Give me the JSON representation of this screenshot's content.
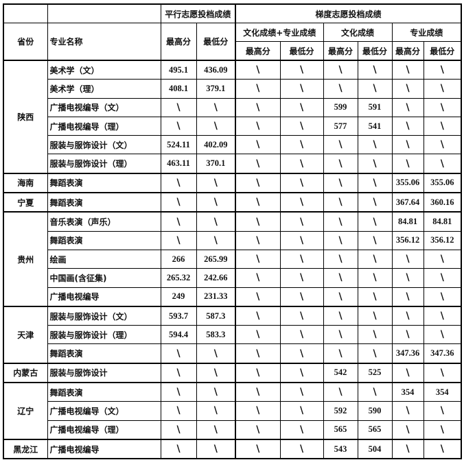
{
  "header": {
    "parallel": "平行志愿投档成绩",
    "gradient": "梯度志愿投档成绩",
    "province": "省份",
    "major": "专业名称",
    "culture_plus_major": "文化成绩+专业成绩",
    "culture": "文化成绩",
    "major_score": "专业成绩",
    "max": "最高分",
    "min": "最低分"
  },
  "groups": [
    {
      "province": "陕西",
      "rows": [
        {
          "major": "美术学（文）",
          "values": [
            "495.1",
            "436.09",
            "\\",
            "\\",
            "\\",
            "\\",
            "\\",
            "\\"
          ]
        },
        {
          "major": "美术学（理）",
          "values": [
            "408.1",
            "379.1",
            "\\",
            "\\",
            "\\",
            "\\",
            "\\",
            "\\"
          ]
        },
        {
          "major": "广播电视编导（文）",
          "values": [
            "\\",
            "\\",
            "\\",
            "\\",
            "599",
            "591",
            "\\",
            "\\"
          ]
        },
        {
          "major": "广播电视编导（理）",
          "values": [
            "\\",
            "\\",
            "\\",
            "\\",
            "577",
            "541",
            "\\",
            "\\"
          ]
        },
        {
          "major": "服装与服饰设计（文）",
          "values": [
            "524.11",
            "402.09",
            "\\",
            "\\",
            "\\",
            "\\",
            "\\",
            "\\"
          ]
        },
        {
          "major": "服装与服饰设计（理）",
          "values": [
            "463.11",
            "370.1",
            "\\",
            "\\",
            "\\",
            "\\",
            "\\",
            "\\"
          ]
        }
      ]
    },
    {
      "province": "海南",
      "rows": [
        {
          "major": "舞蹈表演",
          "values": [
            "\\",
            "\\",
            "\\",
            "\\",
            "\\",
            "\\",
            "355.06",
            "355.06"
          ]
        }
      ]
    },
    {
      "province": "宁夏",
      "rows": [
        {
          "major": "舞蹈表演",
          "values": [
            "\\",
            "\\",
            "\\",
            "\\",
            "\\",
            "\\",
            "367.64",
            "360.16"
          ]
        }
      ]
    },
    {
      "province": "贵州",
      "rows": [
        {
          "major": "音乐表演（声乐）",
          "values": [
            "\\",
            "\\",
            "\\",
            "\\",
            "\\",
            "\\",
            "84.81",
            "84.81"
          ]
        },
        {
          "major": "舞蹈表演",
          "values": [
            "\\",
            "\\",
            "\\",
            "\\",
            "\\",
            "\\",
            "356.12",
            "356.12"
          ]
        },
        {
          "major": "绘画",
          "values": [
            "266",
            "265.99",
            "\\",
            "\\",
            "\\",
            "\\",
            "\\",
            "\\"
          ]
        },
        {
          "major": "中国画(含征集)",
          "values": [
            "265.32",
            "242.66",
            "\\",
            "\\",
            "\\",
            "\\",
            "\\",
            "\\"
          ]
        },
        {
          "major": "广播电视编导",
          "values": [
            "249",
            "231.33",
            "\\",
            "\\",
            "\\",
            "\\",
            "\\",
            "\\"
          ]
        }
      ]
    },
    {
      "province": "天津",
      "rows": [
        {
          "major": "服装与服饰设计（文）",
          "values": [
            "593.7",
            "587.3",
            "\\",
            "\\",
            "\\",
            "\\",
            "\\",
            "\\"
          ]
        },
        {
          "major": "服装与服饰设计（理）",
          "values": [
            "594.4",
            "583.3",
            "\\",
            "\\",
            "\\",
            "\\",
            "\\",
            "\\"
          ]
        },
        {
          "major": "舞蹈表演",
          "values": [
            "\\",
            "\\",
            "\\",
            "\\",
            "\\",
            "\\",
            "347.36",
            "347.36"
          ]
        }
      ]
    },
    {
      "province": "内蒙古",
      "rows": [
        {
          "major": "服装与服饰设计",
          "values": [
            "\\",
            "\\",
            "\\",
            "\\",
            "542",
            "525",
            "\\",
            "\\"
          ]
        }
      ]
    },
    {
      "province": "辽宁",
      "rows": [
        {
          "major": "舞蹈表演",
          "values": [
            "\\",
            "\\",
            "\\",
            "\\",
            "\\",
            "\\",
            "354",
            "354"
          ]
        },
        {
          "major": "广播电视编导（文）",
          "values": [
            "\\",
            "\\",
            "\\",
            "\\",
            "592",
            "590",
            "\\",
            "\\"
          ]
        },
        {
          "major": "广播电视编导（理）",
          "values": [
            "\\",
            "\\",
            "\\",
            "\\",
            "565",
            "565",
            "\\",
            "\\"
          ]
        }
      ]
    },
    {
      "province": "黑龙江",
      "rows": [
        {
          "major": "广播电视编导",
          "values": [
            "\\",
            "\\",
            "\\",
            "\\",
            "543",
            "504",
            "\\",
            "\\"
          ]
        }
      ]
    }
  ]
}
